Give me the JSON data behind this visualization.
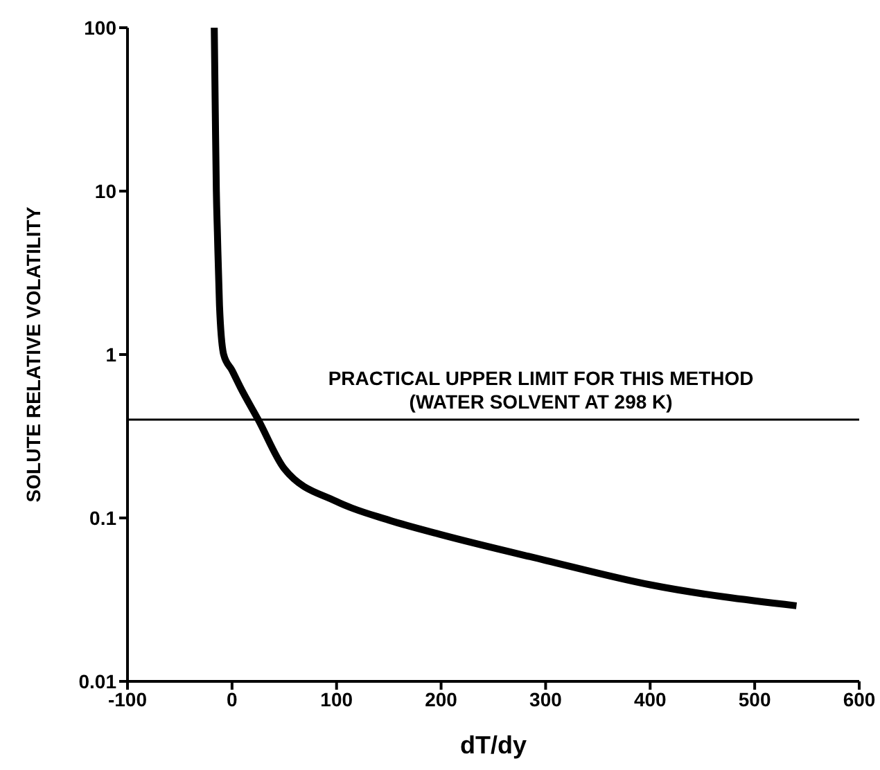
{
  "chart_data": {
    "type": "line",
    "xlabel": "dT/dy",
    "ylabel": "SOLUTE RELATIVE VOLATILITY",
    "log": "y",
    "xlim": [
      -100,
      600
    ],
    "xticks": [
      -100,
      0,
      100,
      200,
      300,
      400,
      500,
      600
    ],
    "ylim": [
      0.01,
      100
    ],
    "yticks": [
      0.01,
      0.1,
      1,
      10,
      100
    ],
    "grid": false,
    "legend": false,
    "marker": "none",
    "line_style": "solid",
    "series": [
      {
        "color": "#000000",
        "x": [
          -17,
          -16,
          -15,
          -14,
          -12,
          -8,
          0,
          8,
          25,
          50,
          100,
          150,
          200,
          300,
          400,
          540
        ],
        "values": [
          100,
          30,
          10,
          5.6,
          2,
          1,
          0.8,
          0.63,
          0.4,
          0.2,
          0.126,
          0.097,
          0.079,
          0.055,
          0.039,
          0.029
        ]
      }
    ],
    "ref_lines": [
      {
        "axis": "y",
        "value": 0.4,
        "label": "PRACTICAL UPPER LIMIT FOR THIS METHOD\n(WATER SOLVENT AT 298 K)",
        "color": "#000000"
      }
    ]
  }
}
